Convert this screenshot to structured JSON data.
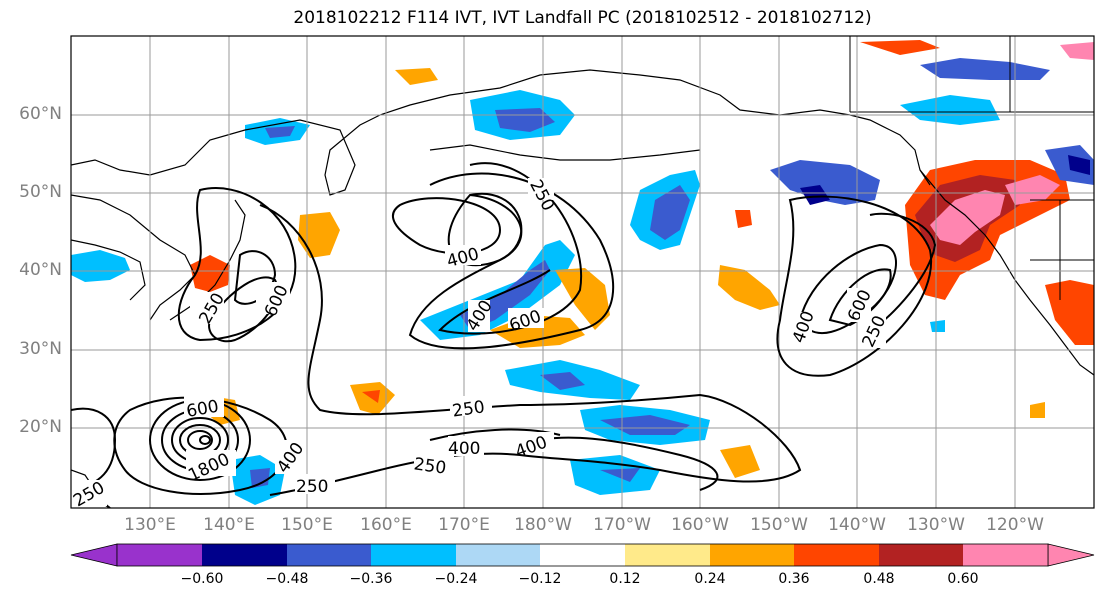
{
  "title": "2018102212 F114 IVT, IVT Landfall PC (2018102512 - 2018102712)",
  "lat_labels": [
    "60°N",
    "50°N",
    "40°N",
    "30°N",
    "20°N"
  ],
  "lon_labels": [
    "130°E",
    "140°E",
    "150°E",
    "160°E",
    "170°E",
    "180°W",
    "170°W",
    "160°W",
    "150°W",
    "140°W",
    "130°W",
    "120°W"
  ],
  "colorbar": {
    "colors": [
      "#9932cc",
      "#00008b",
      "#3a5bcf",
      "#00bfff",
      "#add8f5",
      "#ffffff",
      "#ffea8a",
      "#ffa500",
      "#ff4500",
      "#b22222",
      "#ff85b0"
    ],
    "labels": [
      "−0.60",
      "−0.48",
      "−0.36",
      "−0.24",
      "−0.12",
      "0.12",
      "0.24",
      "0.36",
      "0.48",
      "0.60"
    ]
  },
  "contour_labels": [
    "250",
    "400",
    "600",
    "400",
    "600",
    "250",
    "400",
    "600",
    "250",
    "600",
    "400",
    "250",
    "400",
    "400",
    "250",
    "250",
    "1800",
    "250"
  ]
}
